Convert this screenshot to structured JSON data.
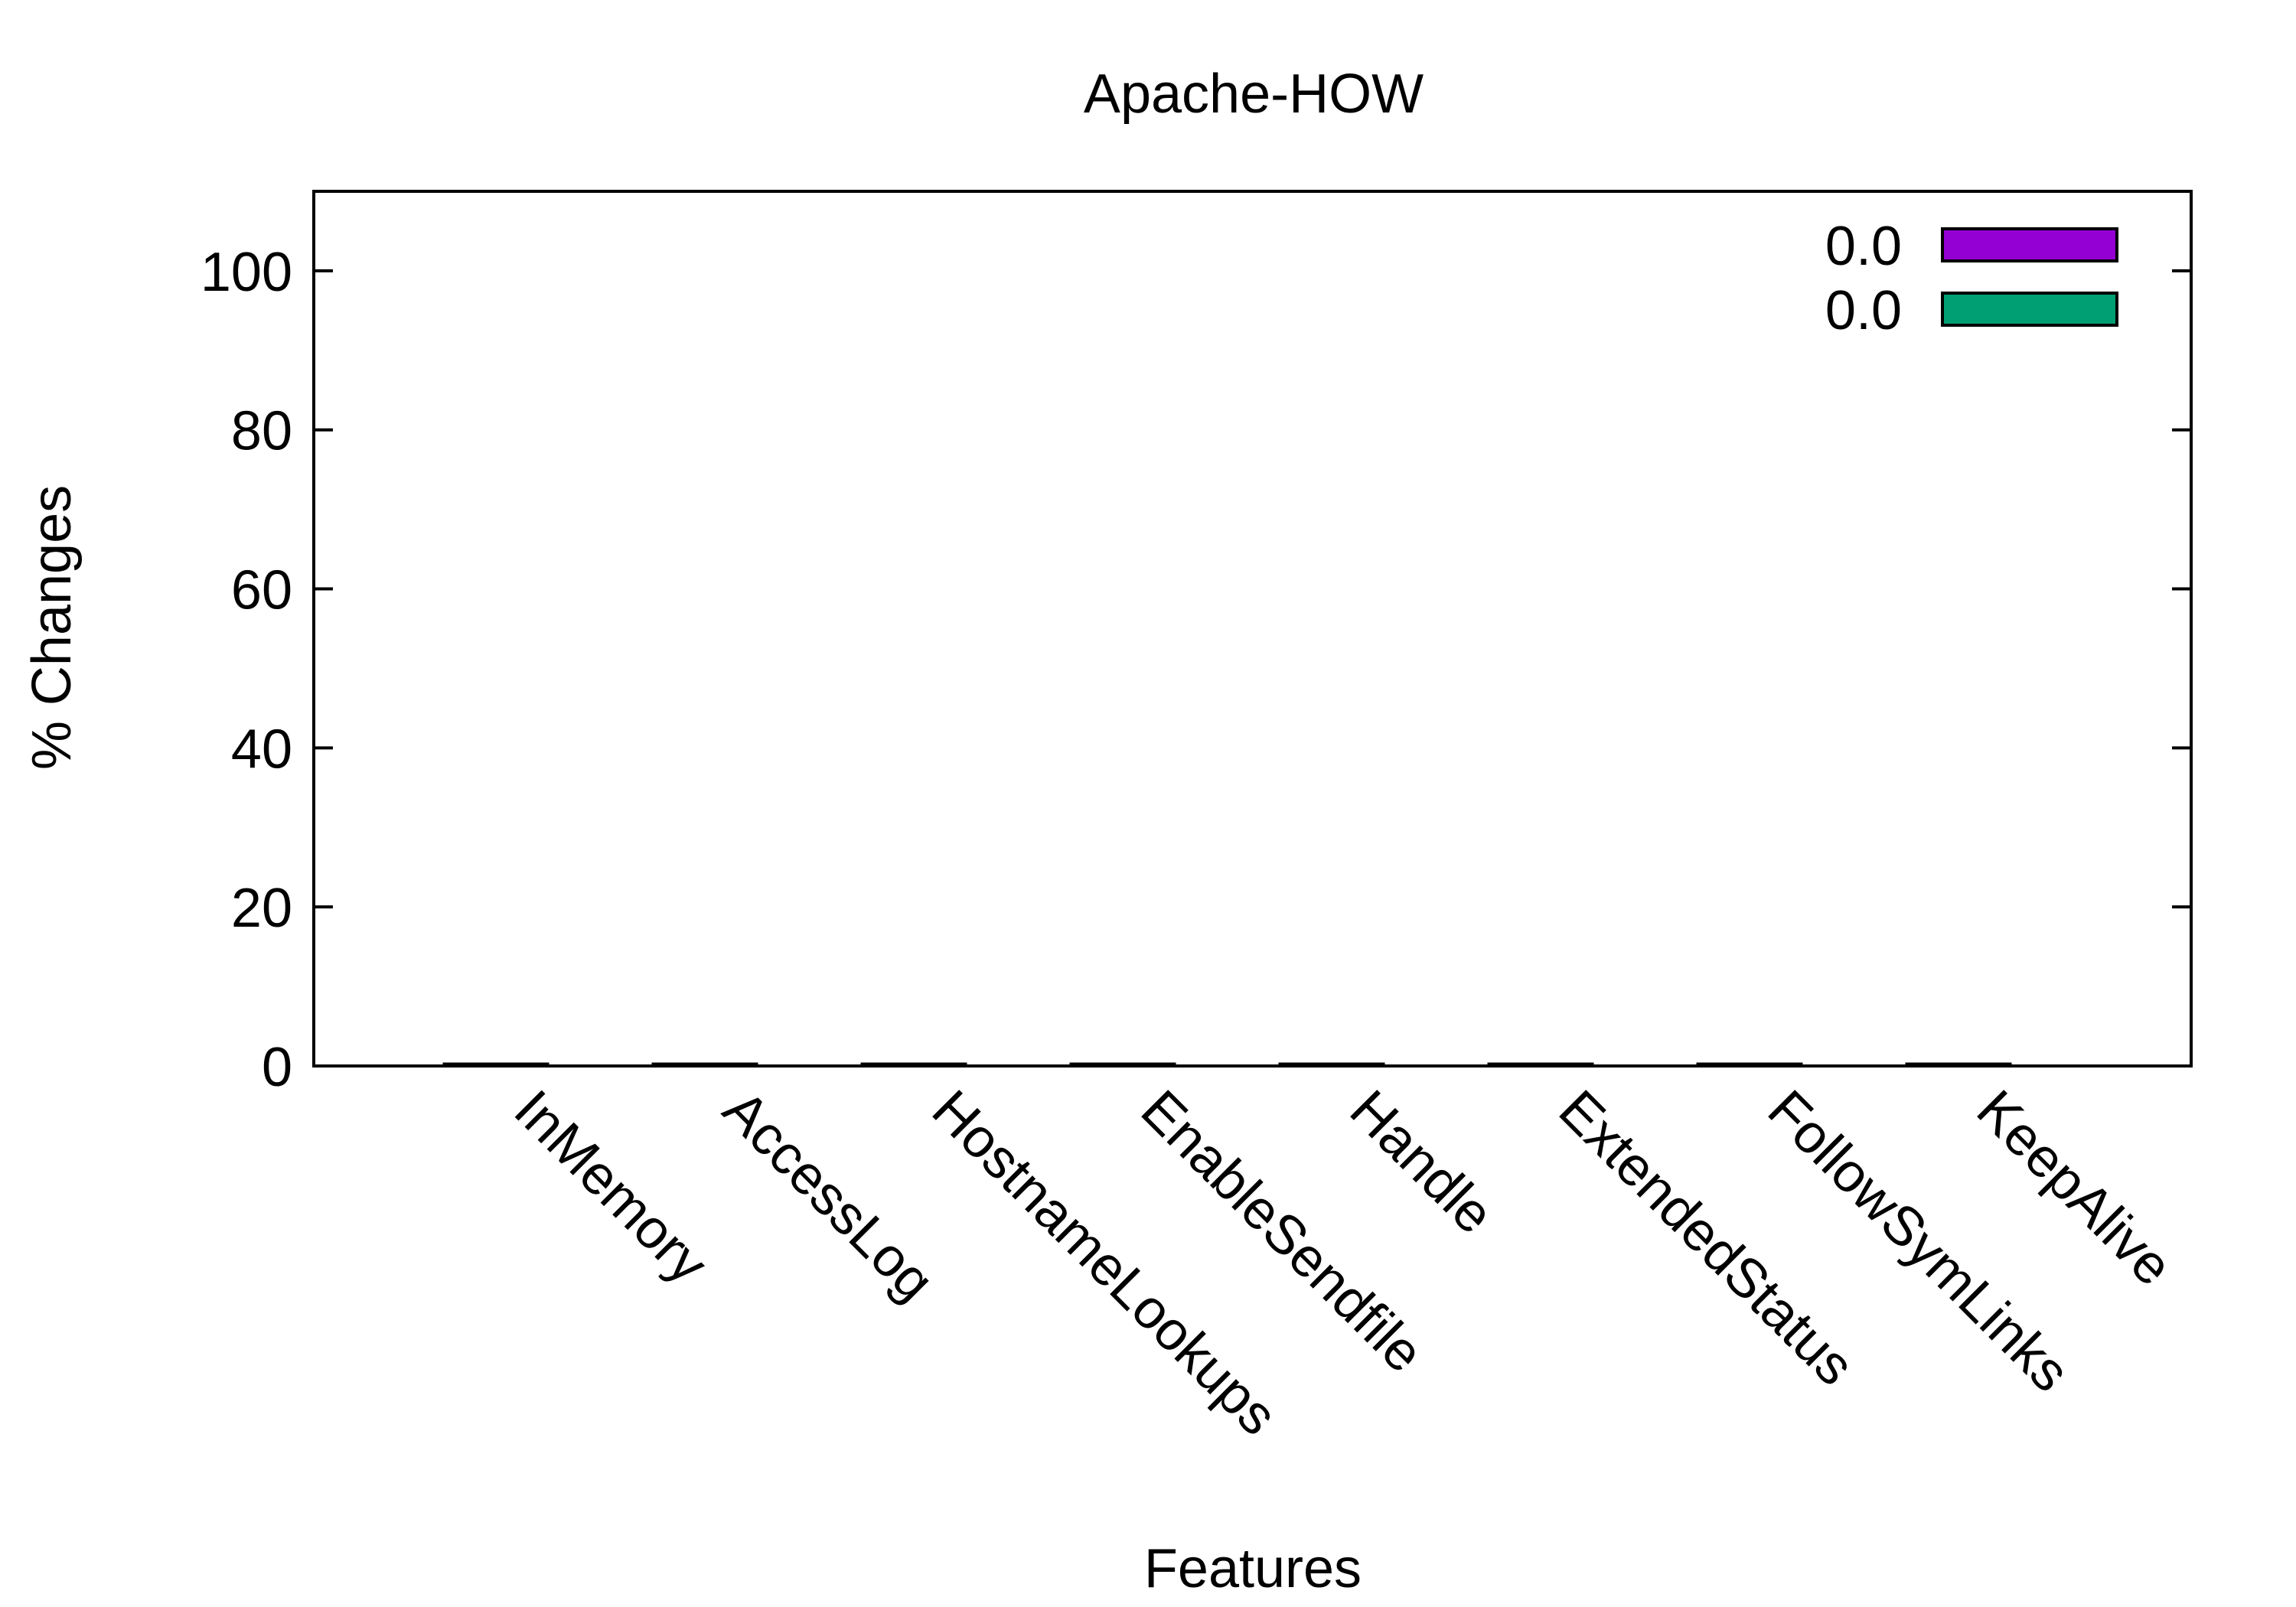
{
  "chart_data": {
    "type": "bar",
    "title": "Apache-HOW",
    "xlabel": "Features",
    "ylabel": "% Changes",
    "categories": [
      "InMemory",
      "AccessLog",
      "HostnameLookups",
      "EnableSendfile",
      "Handle",
      "ExtendedStatus",
      "FollowSymLinks",
      "KeepAlive"
    ],
    "series": [
      {
        "name": "0.0",
        "color": "#9400d3",
        "values": [
          0.2,
          0.2,
          0.2,
          0.2,
          0.2,
          0.2,
          0.2,
          0.2
        ]
      },
      {
        "name": "0.0",
        "color": "#009e73",
        "values": [
          0.2,
          0.2,
          0.2,
          0.2,
          0.2,
          0.2,
          0.2,
          0.2
        ]
      }
    ],
    "ylim": [
      0,
      110
    ],
    "yticks": [
      "0",
      "20",
      "40",
      "60",
      "80",
      "100"
    ],
    "legend_position": "top-right",
    "grid": false
  }
}
